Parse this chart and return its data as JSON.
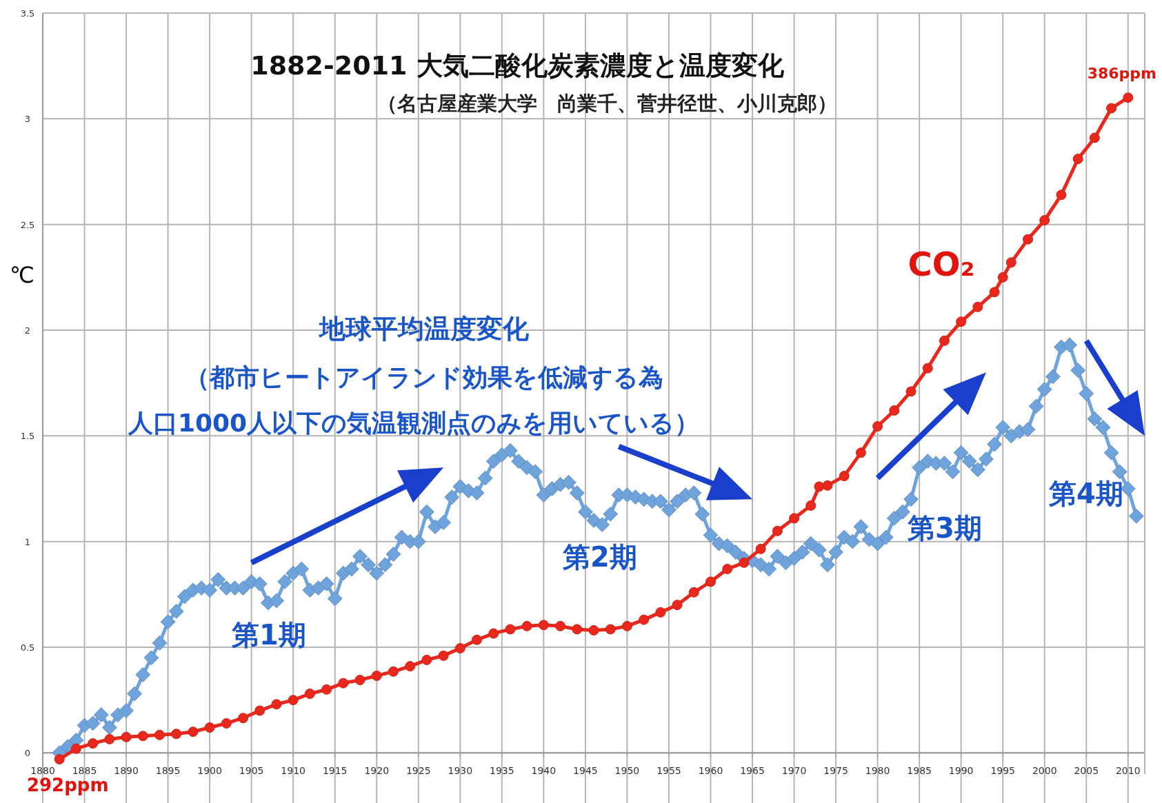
{
  "chart_data": {
    "type": "line",
    "title": "1882-2011 大気二酸化炭素濃度と温度変化",
    "subtitle": "（名古屋産業大学　尚業千、菅井径世、小川克郎）",
    "ylabel": "℃",
    "xlim": [
      1880,
      2012
    ],
    "xticks": [
      1880,
      1885,
      1890,
      1895,
      1900,
      1905,
      1910,
      1915,
      1920,
      1925,
      1930,
      1935,
      1940,
      1945,
      1950,
      1955,
      1960,
      1965,
      1970,
      1975,
      1980,
      1985,
      1990,
      1995,
      2000,
      2005,
      2010
    ],
    "ylim": [
      -0.1,
      3.5
    ],
    "yticks": [
      0,
      0.5,
      1,
      1.5,
      2,
      2.5,
      3,
      3.5
    ],
    "grid": true,
    "series": [
      {
        "color": "#6fa3dc",
        "marker": "diamond",
        "x": [
          1882,
          1883,
          1884,
          1885,
          1886,
          1887,
          1888,
          1889,
          1890,
          1891,
          1892,
          1893,
          1894,
          1895,
          1896,
          1897,
          1898,
          1899,
          1900,
          1901,
          1902,
          1903,
          1904,
          1905,
          1906,
          1907,
          1908,
          1909,
          1910,
          1911,
          1912,
          1913,
          1914,
          1915,
          1916,
          1917,
          1918,
          1919,
          1920,
          1921,
          1922,
          1923,
          1924,
          1925,
          1926,
          1927,
          1928,
          1929,
          1930,
          1931,
          1932,
          1933,
          1934,
          1935,
          1936,
          1937,
          1938,
          1939,
          1940,
          1941,
          1942,
          1943,
          1944,
          1945,
          1946,
          1947,
          1948,
          1949,
          1950,
          1951,
          1952,
          1953,
          1954,
          1955,
          1956,
          1957,
          1958,
          1959,
          1960,
          1961,
          1962,
          1963,
          1964,
          1965,
          1966,
          1967,
          1968,
          1969,
          1970,
          1971,
          1972,
          1973,
          1974,
          1975,
          1976,
          1977,
          1978,
          1979,
          1980,
          1981,
          1982,
          1983,
          1984,
          1985,
          1986,
          1987,
          1988,
          1989,
          1990,
          1991,
          1992,
          1993,
          1994,
          1995,
          1996,
          1997,
          1998,
          1999,
          2000,
          2001,
          2002,
          2003,
          2004,
          2005,
          2006,
          2007,
          2008,
          2009,
          2010,
          2011
        ],
        "values": [
          0.0,
          0.03,
          0.06,
          0.13,
          0.14,
          0.18,
          0.12,
          0.18,
          0.2,
          0.28,
          0.37,
          0.45,
          0.52,
          0.62,
          0.67,
          0.74,
          0.77,
          0.78,
          0.77,
          0.82,
          0.78,
          0.78,
          0.78,
          0.81,
          0.8,
          0.71,
          0.72,
          0.81,
          0.85,
          0.87,
          0.77,
          0.78,
          0.8,
          0.73,
          0.85,
          0.87,
          0.93,
          0.89,
          0.85,
          0.89,
          0.94,
          1.02,
          1.0,
          1.0,
          1.14,
          1.07,
          1.09,
          1.21,
          1.26,
          1.24,
          1.23,
          1.3,
          1.38,
          1.41,
          1.43,
          1.38,
          1.35,
          1.33,
          1.22,
          1.25,
          1.27,
          1.28,
          1.23,
          1.14,
          1.1,
          1.08,
          1.13,
          1.22,
          1.22,
          1.21,
          1.2,
          1.19,
          1.19,
          1.15,
          1.19,
          1.22,
          1.23,
          1.13,
          1.03,
          0.99,
          0.98,
          0.95,
          0.92,
          0.91,
          0.89,
          0.87,
          0.93,
          0.9,
          0.92,
          0.95,
          0.99,
          0.96,
          0.89,
          0.95,
          1.02,
          1.0,
          1.07,
          1.01,
          0.99,
          1.02,
          1.11,
          1.14,
          1.2,
          1.35,
          1.38,
          1.37,
          1.37,
          1.33,
          1.42,
          1.38,
          1.34,
          1.39,
          1.46,
          1.54,
          1.5,
          1.52,
          1.53,
          1.64,
          1.72,
          1.78,
          1.92,
          1.93,
          1.81,
          1.7,
          1.58,
          1.54,
          1.42,
          1.33,
          1.25,
          1.12
        ]
      },
      {
        "name": "CO₂",
        "color": "#e8281c",
        "marker": "circle",
        "x": [
          1882,
          1884,
          1886,
          1888,
          1890,
          1892,
          1894,
          1896,
          1898,
          1900,
          1902,
          1904,
          1906,
          1908,
          1910,
          1912,
          1914,
          1916,
          1918,
          1920,
          1922,
          1924,
          1926,
          1928,
          1930,
          1932,
          1934,
          1936,
          1938,
          1940,
          1942,
          1944,
          1946,
          1948,
          1950,
          1952,
          1954,
          1956,
          1958,
          1960,
          1962,
          1964,
          1966,
          1968,
          1970,
          1972,
          1973,
          1974,
          1976,
          1978,
          1980,
          1982,
          1984,
          1986,
          1988,
          1990,
          1992,
          1994,
          1995,
          1996,
          1998,
          2000,
          2002,
          2004,
          2006,
          2008,
          2010
        ],
        "values": [
          -0.03,
          0.02,
          0.045,
          0.065,
          0.075,
          0.08,
          0.085,
          0.09,
          0.1,
          0.12,
          0.14,
          0.165,
          0.2,
          0.23,
          0.25,
          0.28,
          0.3,
          0.33,
          0.345,
          0.365,
          0.385,
          0.41,
          0.44,
          0.46,
          0.495,
          0.535,
          0.565,
          0.585,
          0.6,
          0.605,
          0.6,
          0.585,
          0.58,
          0.585,
          0.6,
          0.63,
          0.665,
          0.7,
          0.76,
          0.81,
          0.87,
          0.9,
          0.965,
          1.05,
          1.11,
          1.17,
          1.26,
          1.265,
          1.31,
          1.42,
          1.545,
          1.62,
          1.71,
          1.82,
          1.95,
          2.04,
          2.11,
          2.18,
          2.25,
          2.32,
          2.43,
          2.52,
          2.64,
          2.81,
          2.91,
          3.05,
          3.1
        ]
      }
    ],
    "annotations": [
      "地球平均温度変化",
      "（都市ヒートアイランド効果を低減する為",
      "人口1000人以下の気温観測点のみを用いている）",
      "第1期",
      "第2期",
      "第3期",
      "第4期",
      {
        "text": "292ppm",
        "x": 1882,
        "y": -0.03
      },
      {
        "text": "386ppm",
        "x": 2010,
        "y": 3.1
      }
    ]
  }
}
